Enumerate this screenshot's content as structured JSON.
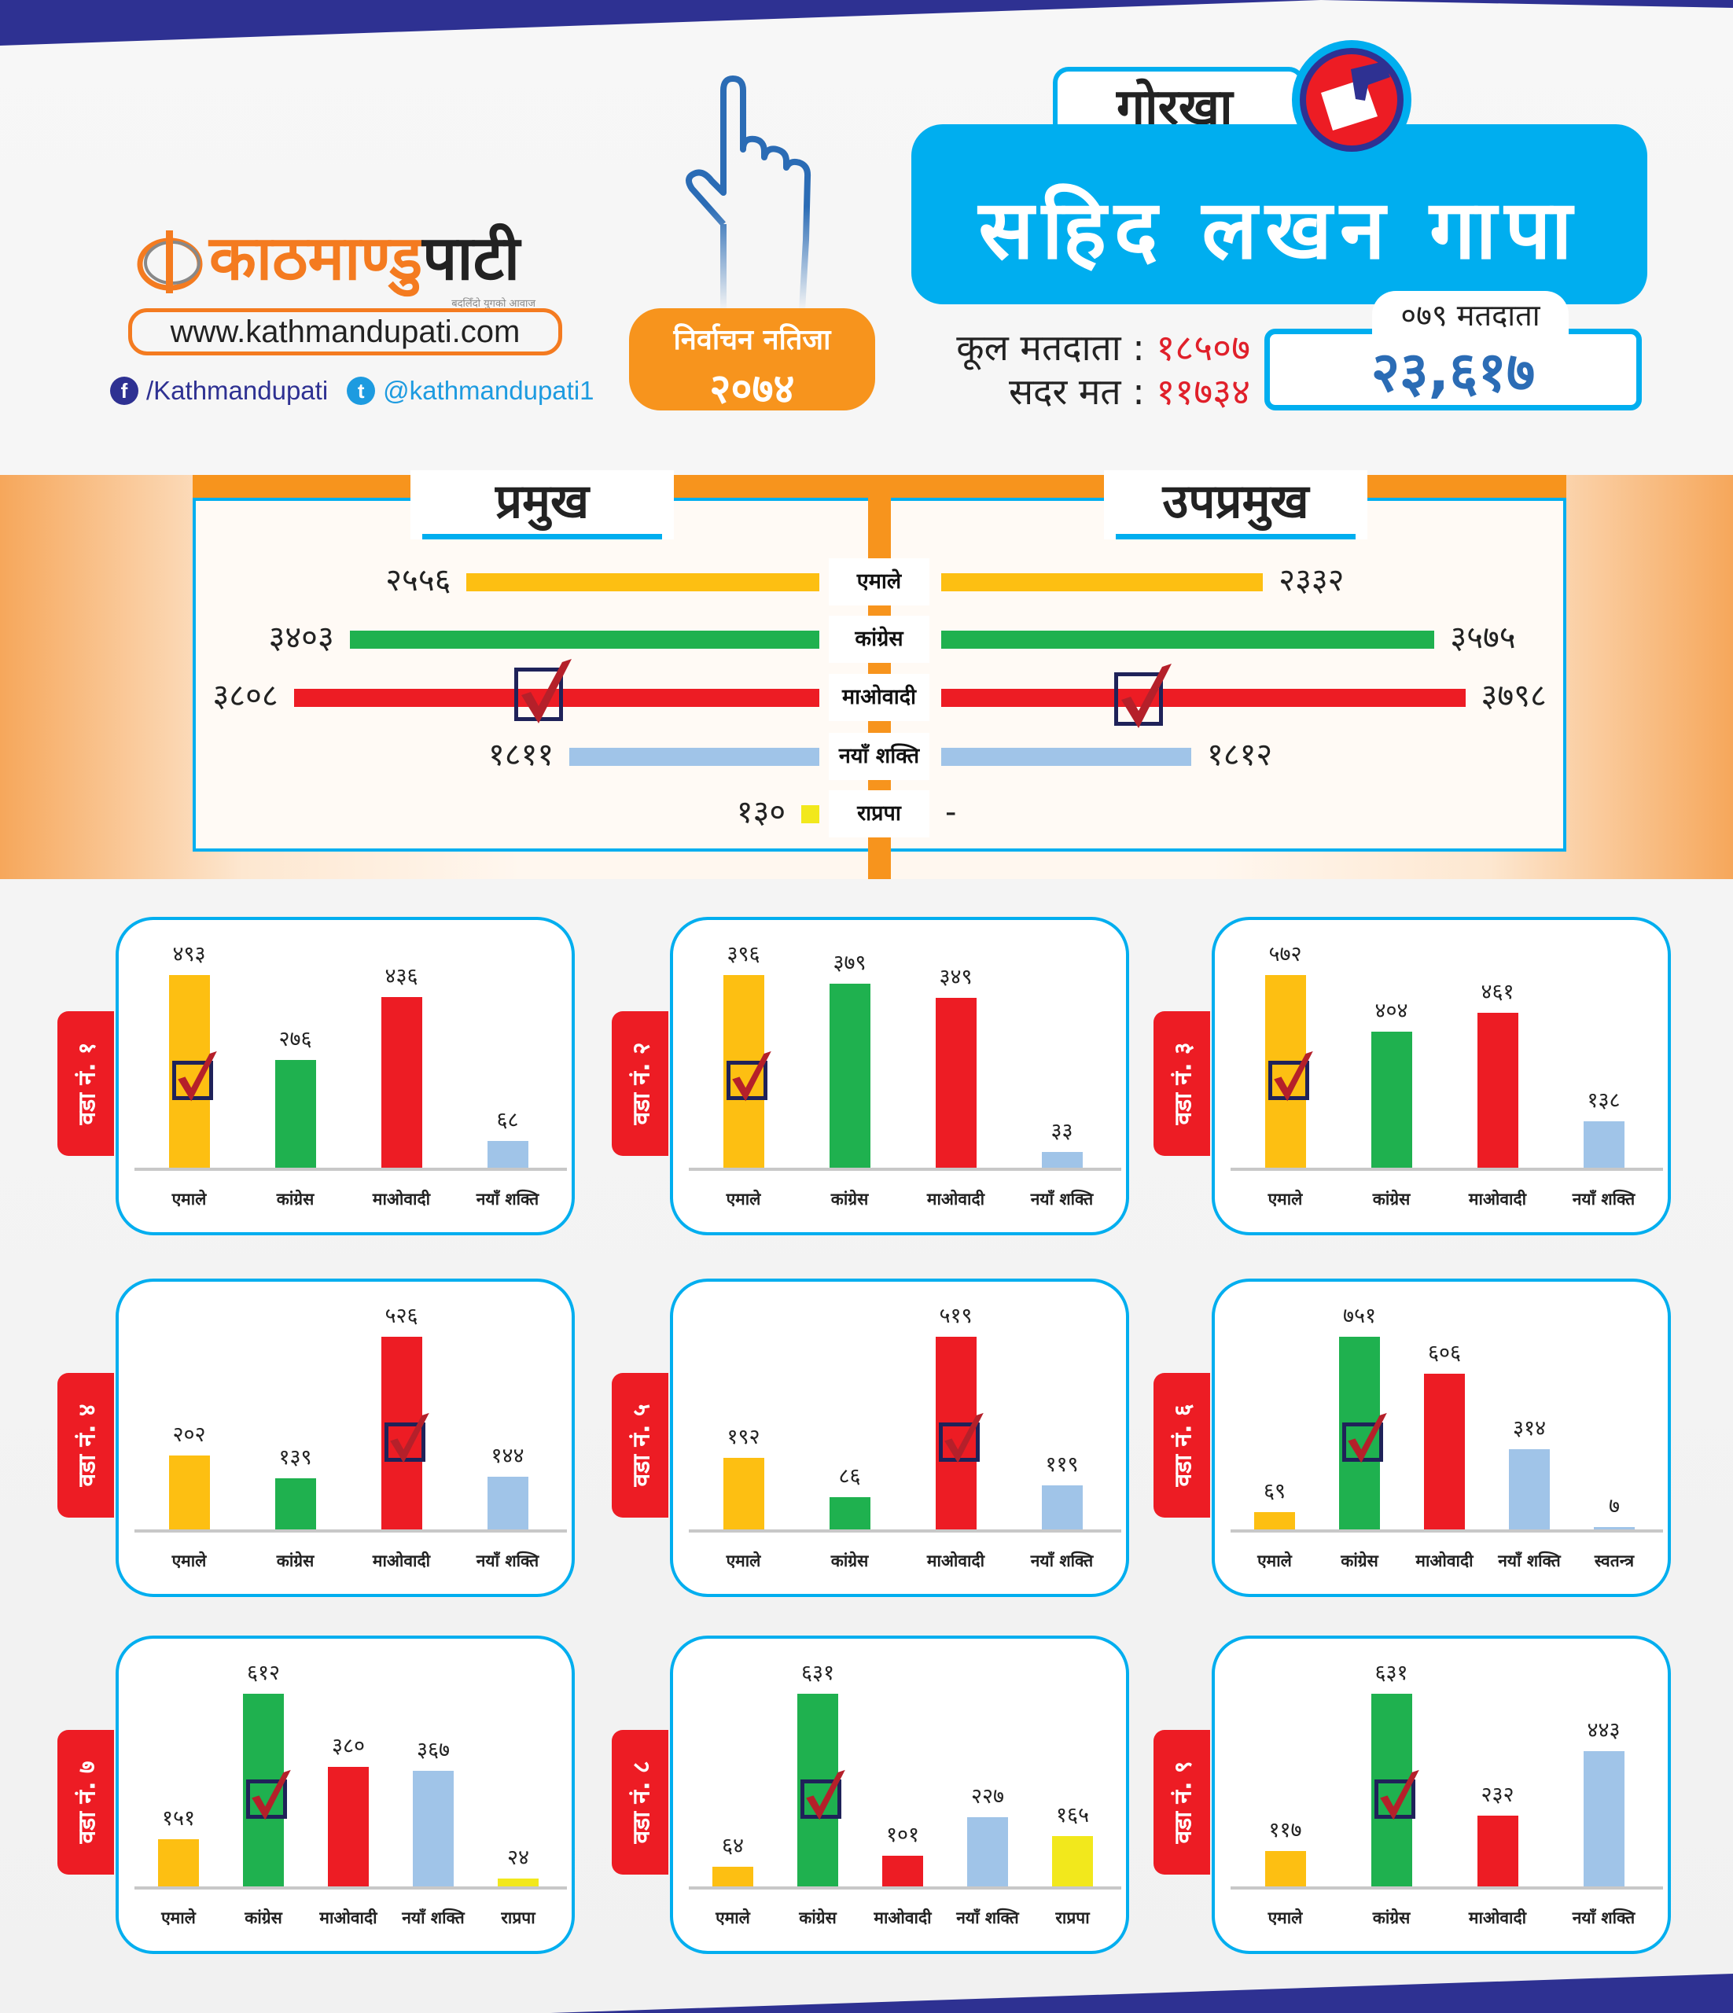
{
  "brand": {
    "logo_text_orange": "काठमाण्डु",
    "logo_text_black": "पाटी",
    "tagline": "बदलिँदो युगको आवाज",
    "url": "www.kathmandupati.com",
    "facebook": "/Kathmandupati",
    "twitter": "@kathmandupati1"
  },
  "badge": {
    "line1": "निर्वाचन नतिजा",
    "line2": "२०७४"
  },
  "header": {
    "district": "गोरखा",
    "title": "सहिद लखन गापा",
    "total_voters_label": "कूल मतदाता :",
    "total_voters": "१८५०७",
    "valid_votes_label": "सदर मत :",
    "valid_votes": "११७३४",
    "voters_079_label": "०७९ मतदाता",
    "voters_079": "२३,६१७"
  },
  "colors": {
    "एमाले": "#fdbf12",
    "कांग्रेस": "#1fb14f",
    "माओवादी": "#ed1c24",
    "नयाँ शक्ति": "#a0c4e8",
    "राप्रपा": "#f2e81c",
    "स्वतन्त्र": "#a0c4e8",
    "accent_blue": "#00aeef",
    "accent_orange": "#f7941d",
    "navy": "#2e3192"
  },
  "main": {
    "mayor_label": "प्रमुख",
    "deputy_label": "उपप्रमुख",
    "rows": [
      {
        "party": "एमाले",
        "mayor": 2556,
        "mayor_text": "२५५६",
        "deputy": 2332,
        "deputy_text": "२३३२"
      },
      {
        "party": "कांग्रेस",
        "mayor": 3403,
        "mayor_text": "३४०३",
        "deputy": 3575,
        "deputy_text": "३५७५"
      },
      {
        "party": "माओवादी",
        "mayor": 3808,
        "mayor_text": "३८०८",
        "deputy": 3798,
        "deputy_text": "३७९८",
        "winner": true
      },
      {
        "party": "नयाँ शक्ति",
        "mayor": 1811,
        "mayor_text": "१८११",
        "deputy": 1812,
        "deputy_text": "१८१२"
      },
      {
        "party": "राप्रपा",
        "mayor": 130,
        "mayor_text": "१३०",
        "deputy": null,
        "deputy_text": "-"
      }
    ]
  },
  "wards": [
    {
      "label": "वडा नं. १",
      "winner": 0,
      "parties": [
        {
          "name": "एमाले",
          "value": 493,
          "text": "४९३"
        },
        {
          "name": "कांग्रेस",
          "value": 276,
          "text": "२७६"
        },
        {
          "name": "माओवादी",
          "value": 436,
          "text": "४३६"
        },
        {
          "name": "नयाँ शक्ति",
          "value": 68,
          "text": "६८"
        }
      ]
    },
    {
      "label": "वडा नं. २",
      "winner": 0,
      "parties": [
        {
          "name": "एमाले",
          "value": 396,
          "text": "३९६"
        },
        {
          "name": "कांग्रेस",
          "value": 379,
          "text": "३७९"
        },
        {
          "name": "माओवादी",
          "value": 349,
          "text": "३४९"
        },
        {
          "name": "नयाँ शक्ति",
          "value": 33,
          "text": "३३"
        }
      ]
    },
    {
      "label": "वडा नं. ३",
      "winner": 0,
      "parties": [
        {
          "name": "एमाले",
          "value": 572,
          "text": "५७२"
        },
        {
          "name": "कांग्रेस",
          "value": 404,
          "text": "४०४"
        },
        {
          "name": "माओवादी",
          "value": 461,
          "text": "४६१"
        },
        {
          "name": "नयाँ शक्ति",
          "value": 138,
          "text": "१३८"
        }
      ]
    },
    {
      "label": "वडा नं. ४",
      "winner": 2,
      "parties": [
        {
          "name": "एमाले",
          "value": 202,
          "text": "२०२"
        },
        {
          "name": "कांग्रेस",
          "value": 139,
          "text": "१३९"
        },
        {
          "name": "माओवादी",
          "value": 526,
          "text": "५२६"
        },
        {
          "name": "नयाँ शक्ति",
          "value": 144,
          "text": "१४४"
        }
      ]
    },
    {
      "label": "वडा नं. ५",
      "winner": 2,
      "parties": [
        {
          "name": "एमाले",
          "value": 192,
          "text": "१९२"
        },
        {
          "name": "कांग्रेस",
          "value": 86,
          "text": "८६"
        },
        {
          "name": "माओवादी",
          "value": 519,
          "text": "५१९"
        },
        {
          "name": "नयाँ शक्ति",
          "value": 119,
          "text": "११९"
        }
      ]
    },
    {
      "label": "वडा नं. ६",
      "winner": 1,
      "parties": [
        {
          "name": "एमाले",
          "value": 69,
          "text": "६९"
        },
        {
          "name": "कांग्रेस",
          "value": 751,
          "text": "७५१"
        },
        {
          "name": "माओवादी",
          "value": 606,
          "text": "६०६"
        },
        {
          "name": "नयाँ शक्ति",
          "value": 314,
          "text": "३१४"
        },
        {
          "name": "स्वतन्त्र",
          "value": 7,
          "text": "७"
        }
      ]
    },
    {
      "label": "वडा नं. ७",
      "winner": 1,
      "parties": [
        {
          "name": "एमाले",
          "value": 151,
          "text": "१५१"
        },
        {
          "name": "कांग्रेस",
          "value": 612,
          "text": "६१२"
        },
        {
          "name": "माओवादी",
          "value": 380,
          "text": "३८०"
        },
        {
          "name": "नयाँ शक्ति",
          "value": 367,
          "text": "३६७"
        },
        {
          "name": "राप्रपा",
          "value": 24,
          "text": "२४"
        }
      ]
    },
    {
      "label": "वडा नं. ८",
      "winner": 1,
      "parties": [
        {
          "name": "एमाले",
          "value": 64,
          "text": "६४"
        },
        {
          "name": "कांग्रेस",
          "value": 631,
          "text": "६३१"
        },
        {
          "name": "माओवादी",
          "value": 101,
          "text": "१०१"
        },
        {
          "name": "नयाँ शक्ति",
          "value": 227,
          "text": "२२७"
        },
        {
          "name": "राप्रपा",
          "value": 165,
          "text": "१६५"
        }
      ]
    },
    {
      "label": "वडा नं. ९",
      "winner": 1,
      "parties": [
        {
          "name": "एमाले",
          "value": 117,
          "text": "११७"
        },
        {
          "name": "कांग्रेस",
          "value": 631,
          "text": "६३१"
        },
        {
          "name": "माओवादी",
          "value": 232,
          "text": "२३२"
        },
        {
          "name": "नयाँ शक्ति",
          "value": 443,
          "text": "४४३"
        }
      ]
    }
  ]
}
